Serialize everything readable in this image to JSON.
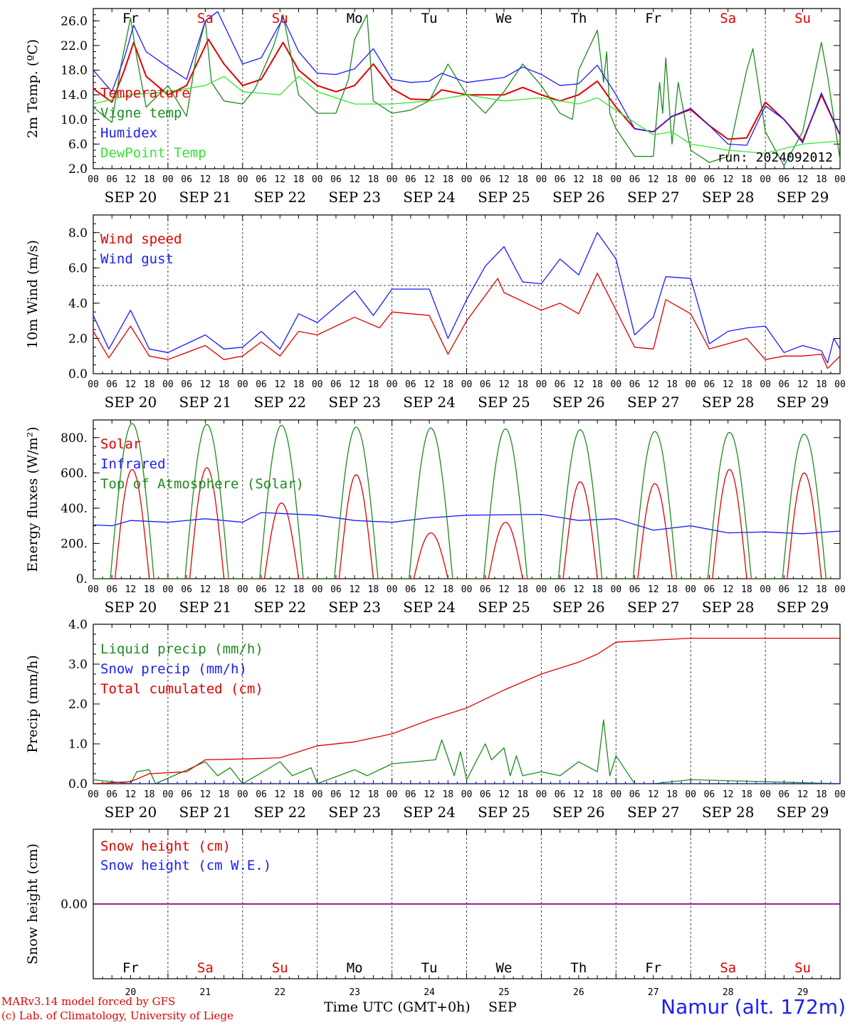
{
  "footer": {
    "model_line": "MARv3.14 model forced by GFS",
    "lab_line": "(c) Lab. of Climatology, University of Liege",
    "time_axis_label": "Time UTC (GMT+0h)",
    "month_label": "SEP",
    "station": "Namur (alt. 172m)"
  },
  "colors": {
    "red": "#e00000",
    "green": "#1f8a1f",
    "blue": "#1c1cff",
    "light_green": "#33e633",
    "purple": "#800080",
    "weekday_black": "#000000",
    "weekend_red": "#e00000"
  },
  "chart_data": [
    {
      "id": "temperature",
      "type": "line",
      "ylabel": "2m Temp. (ºC)",
      "ylim": [
        2,
        28
      ],
      "yticks": [
        "2.0",
        "6.0",
        "10.0",
        "14.0",
        "18.0",
        "22.0",
        "26.0"
      ],
      "ytick_values": [
        2,
        6,
        10,
        14,
        18,
        22,
        26
      ],
      "x_hour_labels": [
        "00",
        "06",
        "12",
        "18"
      ],
      "dates": [
        "SEP 20",
        "SEP 21",
        "SEP 22",
        "SEP 23",
        "SEP 24",
        "SEP 25",
        "SEP 26",
        "SEP 27",
        "SEP 28",
        "SEP 29"
      ],
      "weekdays": [
        {
          "label": "Fr",
          "weekend": false
        },
        {
          "label": "Sa",
          "weekend": true
        },
        {
          "label": "Su",
          "weekend": true
        },
        {
          "label": "Mo",
          "weekend": false
        },
        {
          "label": "Tu",
          "weekend": false
        },
        {
          "label": "We",
          "weekend": false
        },
        {
          "label": "Th",
          "weekend": false
        },
        {
          "label": "Fr",
          "weekend": false
        },
        {
          "label": "Sa",
          "weekend": true
        },
        {
          "label": "Su",
          "weekend": true
        }
      ],
      "annotation": "run: 2024092012",
      "x_unit": "hours since SEP 20 00 UTC",
      "series": [
        {
          "name": "Temperature",
          "color": "red",
          "x": [
            0,
            6,
            10,
            13,
            17,
            24,
            30,
            37,
            42,
            48,
            54,
            61,
            66,
            72,
            78,
            84,
            90,
            96,
            102,
            108,
            112,
            120,
            132,
            138,
            144,
            150,
            156,
            162,
            168,
            174,
            180,
            186,
            192,
            198,
            204,
            210,
            216,
            222,
            228,
            234,
            240
          ],
          "y": [
            15,
            12.8,
            18,
            22.5,
            17,
            14,
            15.5,
            23,
            19,
            15.5,
            16.5,
            22.5,
            18,
            15.5,
            14.5,
            15.5,
            19,
            15,
            13.3,
            13.2,
            14.8,
            14,
            14,
            15.2,
            14,
            13,
            14,
            16.2,
            12,
            8.5,
            8,
            10.5,
            11.6,
            9,
            6.8,
            7,
            12.8,
            10,
            6.5,
            14,
            7.5
          ]
        },
        {
          "name": "Vigne temp",
          "color": "green",
          "x": [
            0,
            6,
            9,
            12,
            14,
            17,
            24,
            30,
            33,
            36,
            38,
            42,
            48,
            52,
            58,
            61,
            66,
            72,
            78,
            82,
            84,
            88,
            90,
            96,
            102,
            108,
            114,
            120,
            126,
            132,
            138,
            144,
            150,
            154,
            156,
            162,
            164,
            165,
            166,
            168,
            174,
            180,
            182,
            183,
            184,
            186,
            188,
            192,
            198,
            204,
            210,
            212,
            216,
            222,
            228,
            234,
            236,
            240
          ],
          "y": [
            12,
            9.5,
            19,
            26.5,
            20,
            12,
            15.5,
            10.5,
            20,
            26,
            16,
            13,
            12.5,
            15,
            22,
            27,
            14,
            11,
            11,
            16.5,
            23,
            27,
            13,
            11,
            11.5,
            13,
            19,
            14,
            11,
            14.5,
            19,
            15.5,
            11,
            10,
            18,
            24.5,
            16,
            21,
            11,
            8.5,
            4,
            4,
            16,
            11,
            20,
            6,
            16,
            5,
            3,
            4,
            18,
            21.5,
            8,
            2.5,
            8,
            22.5,
            17,
            3.5
          ]
        },
        {
          "name": "Humidex",
          "color": "blue",
          "x": [
            0,
            6,
            10,
            13,
            17,
            24,
            30,
            36,
            40,
            48,
            54,
            61,
            66,
            72,
            78,
            84,
            90,
            96,
            102,
            108,
            112,
            120,
            132,
            138,
            144,
            150,
            156,
            162,
            168,
            174,
            180,
            186,
            192,
            198,
            204,
            210,
            216,
            222,
            228,
            234,
            240
          ],
          "y": [
            18,
            14.5,
            20,
            25.3,
            21,
            18.5,
            16.5,
            26,
            27.5,
            19,
            20,
            26.5,
            21,
            17.5,
            17.3,
            18.2,
            21.5,
            16.5,
            16,
            16.2,
            17.5,
            16,
            16.8,
            18.5,
            17.3,
            15.5,
            15.8,
            18.8,
            14,
            8.5,
            8,
            10.5,
            11.8,
            9,
            6,
            5.8,
            12.2,
            10,
            6.2,
            14.3,
            7.5
          ]
        },
        {
          "name": "DewPoint Temp",
          "color": "light_green",
          "x": [
            0,
            12,
            24,
            36,
            42,
            48,
            60,
            66,
            72,
            84,
            96,
            108,
            120,
            132,
            144,
            156,
            162,
            168,
            180,
            186,
            192,
            204,
            216,
            228,
            240
          ],
          "y": [
            12.5,
            14,
            14.5,
            15.5,
            17,
            14.5,
            14,
            17,
            14.5,
            12.5,
            12.5,
            13,
            14,
            13,
            13.5,
            12.5,
            13.5,
            11.5,
            7.5,
            8,
            6,
            5,
            4.5,
            6,
            6.5
          ]
        }
      ]
    },
    {
      "id": "wind",
      "type": "line",
      "ylabel": "10m Wind (m/s)",
      "ylim": [
        0,
        9
      ],
      "yticks": [
        "0.0",
        "2.0",
        "4.0",
        "6.0",
        "8.0"
      ],
      "ytick_values": [
        0,
        2,
        4,
        6,
        8
      ],
      "reference_line": 5,
      "x_hour_labels": [
        "00",
        "06",
        "12",
        "18"
      ],
      "dates": [
        "SEP 20",
        "SEP 21",
        "SEP 22",
        "SEP 23",
        "SEP 24",
        "SEP 25",
        "SEP 26",
        "SEP 27",
        "SEP 28",
        "SEP 29"
      ],
      "series": [
        {
          "name": "Wind speed",
          "color": "red",
          "x": [
            0,
            5,
            12,
            18,
            24,
            36,
            42,
            48,
            54,
            60,
            66,
            72,
            84,
            92,
            96,
            108,
            114,
            120,
            130,
            132,
            144,
            150,
            156,
            162,
            168,
            174,
            180,
            184,
            192,
            198,
            204,
            210,
            216,
            222,
            228,
            234,
            236,
            240
          ],
          "y": [
            2.4,
            0.9,
            2.7,
            1,
            0.8,
            1.6,
            0.8,
            1,
            1.8,
            1,
            2.4,
            2.2,
            3.2,
            2.6,
            3.5,
            3.3,
            1.1,
            3,
            5.4,
            4.6,
            3.6,
            4,
            3.4,
            5.7,
            3.6,
            1.5,
            1.4,
            4.2,
            3.4,
            1.4,
            1.7,
            2,
            0.8,
            1,
            1,
            1.1,
            0.3,
            1
          ]
        },
        {
          "name": "Wind gust",
          "color": "blue",
          "x": [
            0,
            5,
            12,
            18,
            24,
            36,
            42,
            48,
            54,
            60,
            66,
            72,
            84,
            90,
            96,
            108,
            114,
            120,
            126,
            132,
            138,
            144,
            150,
            156,
            162,
            168,
            174,
            180,
            184,
            192,
            198,
            204,
            210,
            216,
            222,
            228,
            234,
            236,
            238,
            240
          ],
          "y": [
            3.3,
            1.4,
            3.6,
            1.4,
            1.2,
            2.2,
            1.4,
            1.5,
            2.4,
            1.4,
            3.4,
            2.9,
            4.7,
            3.3,
            4.8,
            4.8,
            2,
            4.2,
            6.1,
            7.2,
            5.2,
            5.1,
            6.5,
            5.6,
            8,
            6.5,
            2.2,
            3.2,
            5.5,
            5.4,
            1.7,
            2.4,
            2.6,
            2.7,
            1.2,
            1.6,
            1.3,
            0.6,
            2,
            1.4
          ]
        }
      ]
    },
    {
      "id": "energy",
      "type": "line",
      "ylabel": "Energy fluxes (W/m²)",
      "ylim": [
        0,
        900
      ],
      "yticks": [
        "0.",
        "200.",
        "400.",
        "600.",
        "800."
      ],
      "ytick_values": [
        0,
        200,
        400,
        600,
        800
      ],
      "x_hour_labels": [
        "00",
        "06",
        "12",
        "18"
      ],
      "dates": [
        "SEP 20",
        "SEP 21",
        "SEP 22",
        "SEP 23",
        "SEP 24",
        "SEP 25",
        "SEP 26",
        "SEP 27",
        "SEP 28",
        "SEP 29"
      ],
      "daily_solar_peak": [
        620,
        630,
        430,
        590,
        260,
        320,
        550,
        540,
        620,
        600
      ],
      "daily_toa_peak": [
        880,
        875,
        870,
        860,
        855,
        850,
        845,
        835,
        830,
        820
      ],
      "series": [
        {
          "name": "Solar",
          "color": "red"
        },
        {
          "name": "Infrared",
          "color": "blue",
          "x": [
            0,
            6,
            12,
            24,
            36,
            48,
            54,
            60,
            72,
            84,
            96,
            108,
            120,
            144,
            156,
            168,
            180,
            192,
            204,
            216,
            228,
            240
          ],
          "y": [
            305,
            300,
            330,
            320,
            340,
            320,
            375,
            370,
            360,
            330,
            320,
            345,
            360,
            365,
            330,
            340,
            275,
            300,
            260,
            265,
            255,
            270
          ]
        },
        {
          "name": "Top of Atmosphere (Solar)",
          "color": "green"
        }
      ]
    },
    {
      "id": "precip",
      "type": "line",
      "ylabel": "Precip (mm/h)",
      "ylim": [
        0,
        4
      ],
      "yticks": [
        "0.0",
        "1.0",
        "2.0",
        "3.0",
        "4.0"
      ],
      "ytick_values": [
        0,
        1,
        2,
        3,
        4
      ],
      "x_hour_labels": [
        "00",
        "06",
        "12",
        "18"
      ],
      "dates": [
        "SEP 20",
        "SEP 21",
        "SEP 22",
        "SEP 23",
        "SEP 24",
        "SEP 25",
        "SEP 26",
        "SEP 27",
        "SEP 28",
        "SEP 29"
      ],
      "series": [
        {
          "name": "Liquid precip (mm/h)",
          "color": "green",
          "x": [
            0,
            12,
            14,
            18,
            20,
            36,
            40,
            44,
            48,
            60,
            64,
            70,
            72,
            84,
            88,
            96,
            110,
            112,
            116,
            118,
            120,
            126,
            128,
            132,
            134,
            136,
            138,
            144,
            150,
            156,
            162,
            164,
            166,
            168,
            174,
            180,
            192,
            240
          ],
          "y": [
            0.1,
            0,
            0.3,
            0.35,
            0,
            0.55,
            0.2,
            0.4,
            0,
            0.55,
            0.2,
            0.4,
            0,
            0.35,
            0.2,
            0.5,
            0.6,
            1.1,
            0.2,
            0.8,
            0.1,
            1,
            0.6,
            0.9,
            0.2,
            0.7,
            0.2,
            0.3,
            0.2,
            0.55,
            0.3,
            1.6,
            0.2,
            0.7,
            0,
            0,
            0.1,
            0
          ]
        },
        {
          "name": "Snow precip (mm/h)",
          "color": "blue",
          "x": [
            0,
            240
          ],
          "y": [
            0,
            0
          ]
        },
        {
          "name": "Total cumulated (cm)",
          "color": "red",
          "x": [
            0,
            12,
            18,
            30,
            36,
            48,
            60,
            72,
            84,
            96,
            108,
            120,
            132,
            144,
            156,
            162,
            168,
            180,
            192,
            240
          ],
          "y": [
            0,
            0.05,
            0.25,
            0.3,
            0.6,
            0.62,
            0.65,
            0.95,
            1.05,
            1.25,
            1.6,
            1.9,
            2.35,
            2.75,
            3.05,
            3.25,
            3.55,
            3.6,
            3.65,
            3.65
          ]
        }
      ]
    },
    {
      "id": "snow",
      "type": "line",
      "ylabel": "Snow height (cm)",
      "ylim": [
        -1,
        1
      ],
      "yticks": [
        "0.00"
      ],
      "ytick_values": [
        0
      ],
      "x_hour_labels": [],
      "day_numbers": [
        "20",
        "21",
        "22",
        "23",
        "24",
        "25",
        "26",
        "27",
        "28",
        "29"
      ],
      "weekdays": [
        {
          "label": "Fr",
          "weekend": false
        },
        {
          "label": "Sa",
          "weekend": true
        },
        {
          "label": "Su",
          "weekend": true
        },
        {
          "label": "Mo",
          "weekend": false
        },
        {
          "label": "Tu",
          "weekend": false
        },
        {
          "label": "We",
          "weekend": false
        },
        {
          "label": "Th",
          "weekend": false
        },
        {
          "label": "Fr",
          "weekend": false
        },
        {
          "label": "Sa",
          "weekend": true
        },
        {
          "label": "Su",
          "weekend": true
        }
      ],
      "series": [
        {
          "name": "Snow height (cm)",
          "color": "red",
          "x": [
            0,
            240
          ],
          "y": [
            0,
            0
          ]
        },
        {
          "name": "Snow height (cm W.E.)",
          "color": "blue",
          "x": [
            0,
            240
          ],
          "y": [
            0,
            0
          ]
        }
      ]
    }
  ]
}
